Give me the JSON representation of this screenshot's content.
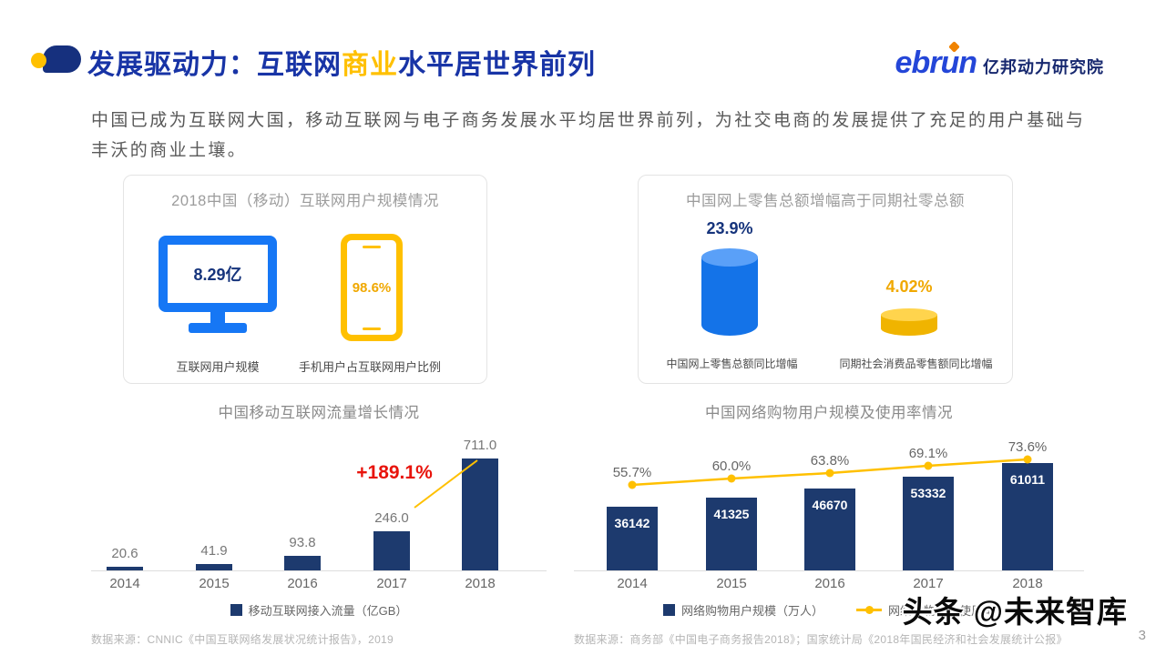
{
  "colors": {
    "title_blue": "#1834a6",
    "highlight_yellow": "#ffc000",
    "navy_bar": "#1d3a6e",
    "bright_blue": "#1677f5",
    "yellow": "#f5b800",
    "red": "#e8140c"
  },
  "header": {
    "title_prefix": "发展驱动力：互联网",
    "title_highlight": "商业",
    "title_suffix": "水平居世界前列",
    "logo_en": "ebrun",
    "logo_cn": "亿邦动力研究院"
  },
  "intro": "中国已成为互联网大国，移动互联网与电子商务发展水平均居世界前列，为社交电商的发展提供了充足的用户基础与丰沃的商业土壤。",
  "panels": {
    "users": {
      "title": "2018中国（移动）互联网用户规模情况",
      "monitor_value": "8.29亿",
      "monitor_label": "互联网用户规模",
      "phone_value": "98.6%",
      "phone_label": "手机用户占互联网用户比例"
    },
    "retail": {
      "title": "中国网上零售总额增幅高于同期社零总额",
      "online_value": "23.9%",
      "online_label": "中国网上零售总额同比增幅",
      "social_value": "4.02%",
      "social_label": "同期社会消费品零售额同比增幅"
    }
  },
  "chart_data": [
    {
      "type": "bar",
      "title": "中国移动互联网流量增长情况",
      "categories": [
        "2014",
        "2015",
        "2016",
        "2017",
        "2018"
      ],
      "values": [
        20.6,
        41.9,
        93.8,
        246.0,
        711.0
      ],
      "value_labels": [
        "20.6",
        "41.9",
        "93.8",
        "246.0",
        "711.0"
      ],
      "ylim": [
        0,
        750
      ],
      "legend": [
        "移动互联网接入流量（亿GB）"
      ],
      "annotation": "+189.1%",
      "source": "数据来源：CNNIC《中国互联网络发展状况统计报告》，2019"
    },
    {
      "type": "bar+line",
      "title": "中国网络购物用户规模及使用率情况",
      "categories": [
        "2014",
        "2015",
        "2016",
        "2017",
        "2018"
      ],
      "series": [
        {
          "name": "网络购物用户规模（万人）",
          "type": "bar",
          "values": [
            36142,
            41325,
            46670,
            53332,
            61011
          ]
        },
        {
          "name": "网络购物用户使用率",
          "type": "line",
          "unit": "%",
          "values": [
            55.7,
            60.0,
            63.8,
            69.1,
            73.6
          ]
        }
      ],
      "pct_labels": [
        "55.7%",
        "60.0%",
        "63.8%",
        "69.1%",
        "73.6%"
      ],
      "ylim_bar": [
        0,
        65000
      ],
      "source": "数据来源：商务部《中国电子商务报告2018》；国家统计局《2018年国民经济和社会发展统计公报》"
    },
    {
      "type": "bar",
      "title": "中国网上零售总额增幅高于同期社零总额",
      "categories": [
        "中国网上零售总额同比增幅",
        "同期社会消费品零售额同比增幅"
      ],
      "values": [
        23.9,
        4.02
      ],
      "unit": "%"
    }
  ],
  "watermark": "头条 @未来智库",
  "page_number": "3"
}
